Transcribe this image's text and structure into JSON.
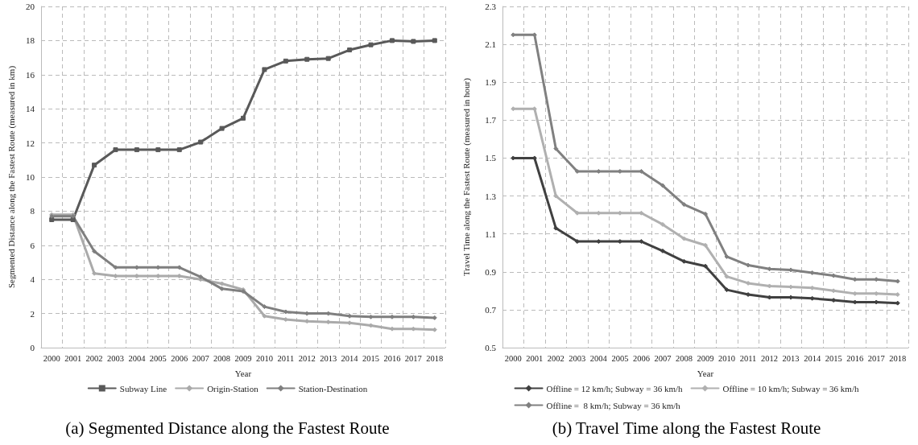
{
  "chart_data": [
    {
      "type": "line",
      "title": "(a) Segmented Distance along the Fastest Route",
      "xlabel": "Year",
      "ylabel": "Segmented Distance along the Fastest Route (measured in km)",
      "categories": [
        "2000",
        "2001",
        "2002",
        "2003",
        "2004",
        "2005",
        "2006",
        "2007",
        "2008",
        "2009",
        "2010",
        "2011",
        "2012",
        "2013",
        "2014",
        "2015",
        "2016",
        "2017",
        "2018"
      ],
      "series": [
        {
          "name": "Subway Line",
          "color": "#595959",
          "marker": "square",
          "values": [
            7.5,
            7.5,
            10.7,
            11.6,
            11.6,
            11.6,
            11.6,
            12.05,
            12.85,
            13.45,
            16.3,
            16.8,
            16.9,
            16.95,
            17.45,
            17.75,
            18.0,
            17.95,
            18.0
          ]
        },
        {
          "name": "Origin-Station",
          "color": "#aaaaaa",
          "marker": "diamond",
          "values": [
            7.8,
            7.8,
            4.35,
            4.2,
            4.2,
            4.2,
            4.2,
            4.0,
            3.75,
            3.4,
            1.85,
            1.65,
            1.55,
            1.5,
            1.45,
            1.3,
            1.1,
            1.1,
            1.05
          ]
        },
        {
          "name": "Station-Destination",
          "color": "#7f7f7f",
          "marker": "diamond",
          "values": [
            7.7,
            7.7,
            5.65,
            4.7,
            4.7,
            4.7,
            4.7,
            4.15,
            3.45,
            3.3,
            2.4,
            2.1,
            2.0,
            2.0,
            1.85,
            1.8,
            1.8,
            1.8,
            1.75
          ]
        }
      ],
      "ylim": [
        0,
        20
      ],
      "yticks": [
        0,
        2,
        4,
        6,
        8,
        10,
        12,
        14,
        16,
        18,
        20
      ],
      "grid": true,
      "legend": "bottom",
      "line_style": "solid"
    },
    {
      "type": "line",
      "title": "(b) Travel Time along the Fastest Route",
      "xlabel": "Year",
      "ylabel": "Travel Time along the Fastest Route (measured in hour)",
      "categories": [
        "2000",
        "2001",
        "2002",
        "2003",
        "2004",
        "2005",
        "2006",
        "2007",
        "2008",
        "2009",
        "2010",
        "2011",
        "2012",
        "2013",
        "2014",
        "2015",
        "2016",
        "2017",
        "2018"
      ],
      "series": [
        {
          "name": "Offline = 12 km/h; Subway = 36 km/h",
          "color": "#404040",
          "marker": "diamond",
          "values": [
            1.5,
            1.5,
            1.13,
            1.06,
            1.06,
            1.06,
            1.06,
            1.01,
            0.955,
            0.93,
            0.805,
            0.78,
            0.765,
            0.765,
            0.76,
            0.75,
            0.74,
            0.74,
            0.735
          ]
        },
        {
          "name": "Offline = 10 km/h; Subway = 36 km/h",
          "color": "#b0b0b0",
          "marker": "diamond",
          "values": [
            1.76,
            1.76,
            1.3,
            1.21,
            1.21,
            1.21,
            1.21,
            1.15,
            1.075,
            1.04,
            0.875,
            0.84,
            0.825,
            0.82,
            0.815,
            0.8,
            0.785,
            0.785,
            0.78
          ]
        },
        {
          "name": "Offline =  8 km/h; Subway = 36 km/h",
          "color": "#808080",
          "marker": "diamond",
          "values": [
            2.15,
            2.15,
            1.55,
            1.43,
            1.43,
            1.43,
            1.43,
            1.355,
            1.255,
            1.205,
            0.98,
            0.935,
            0.915,
            0.91,
            0.895,
            0.88,
            0.86,
            0.86,
            0.85
          ]
        }
      ],
      "ylim": [
        0.5,
        2.3
      ],
      "yticks": [
        0.5,
        0.7,
        0.9,
        1.1,
        1.3,
        1.5,
        1.7,
        1.9,
        2.1,
        2.3
      ],
      "grid": true,
      "legend": "bottom",
      "line_style": "solid"
    }
  ]
}
